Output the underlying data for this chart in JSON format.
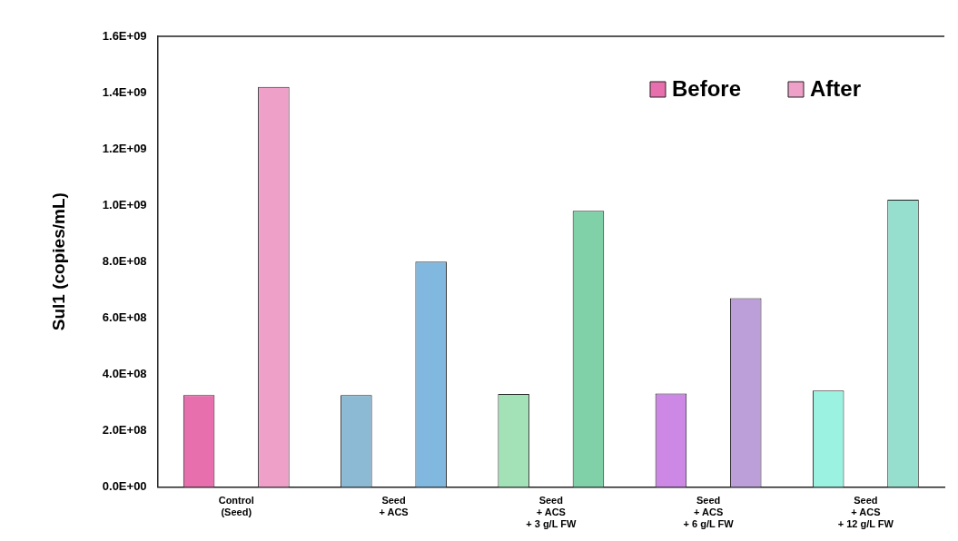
{
  "chart_data": {
    "type": "bar",
    "ylabel": "Sul1 (copies/mL)",
    "categories": [
      "Control\n(Seed)",
      "Seed\n+ ACS",
      "Seed\n+ ACS\n+ 3 g/L FW",
      "Seed\n+ ACS\n+ 6 g/L FW",
      "Seed\n+ ACS\n+ 12 g/L FW"
    ],
    "series": [
      {
        "name": "Before",
        "color": "#e86fad",
        "colors": [
          "#e86fad",
          "#8cbad4",
          "#a3e2b6",
          "#cc88e4",
          "#9cf2e0"
        ],
        "values": [
          326000000,
          326000000,
          330000000,
          332000000,
          342000000
        ]
      },
      {
        "name": "After",
        "color": "#eea0c8",
        "colors": [
          "#eea0c8",
          "#80b8e0",
          "#80d0a8",
          "#bc9fd8",
          "#96dfcf"
        ],
        "values": [
          1420000000,
          800000000,
          980000000,
          670000000,
          1020000000
        ]
      }
    ],
    "ylim": [
      0,
      1600000000
    ],
    "yticks": [
      {
        "value": 0,
        "label": "0.0E+00"
      },
      {
        "value": 200000000,
        "label": "2.0E+08"
      },
      {
        "value": 400000000,
        "label": "4.0E+08"
      },
      {
        "value": 600000000,
        "label": "6.0E+08"
      },
      {
        "value": 800000000,
        "label": "8.0E+08"
      },
      {
        "value": 1000000000,
        "label": "1.0E+09"
      },
      {
        "value": 1200000000,
        "label": "1.2E+09"
      },
      {
        "value": 1400000000,
        "label": "1.4E+09"
      },
      {
        "value": 1600000000,
        "label": "1.6E+09"
      }
    ],
    "grid": false,
    "legend": "top right"
  }
}
